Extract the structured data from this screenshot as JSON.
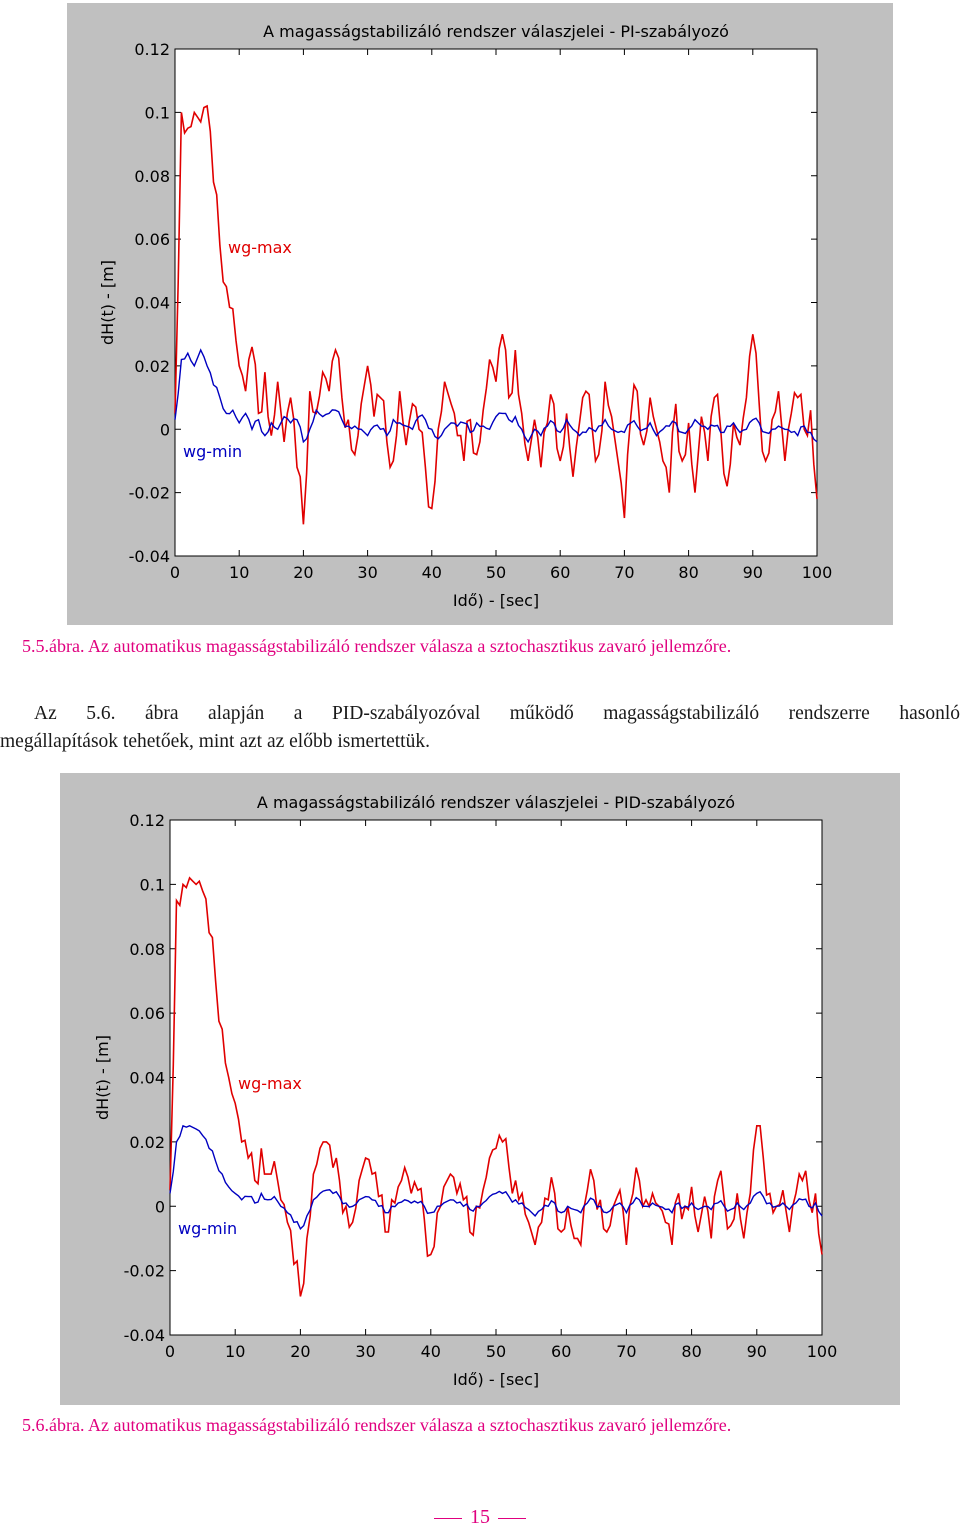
{
  "figures": [
    {
      "title": "A magasságstabilizáló rendszer válaszjelei - PI-szabályozó",
      "caption": "5.5.ábra. Az automatikus magasságstabilizáló rendszer válasza a sztochasztikus zavaró jellemzőre.",
      "chart_data": {
        "type": "line",
        "title": "A magasságstabilizáló rendszer válaszjelei - PI-szabályozó",
        "xlabel": "Idő) - [sec]",
        "ylabel": "dH(t) - [m]",
        "xlim": [
          0,
          100
        ],
        "ylim": [
          -0.04,
          0.12
        ],
        "xticks": [
          "0",
          "10",
          "20",
          "30",
          "40",
          "50",
          "60",
          "70",
          "80",
          "90",
          "100"
        ],
        "yticks": [
          "-0.04",
          "-0.02",
          "0",
          "0.02",
          "0.04",
          "0.06",
          "0.08",
          "0.1",
          "0.12"
        ],
        "grid": false,
        "series": [
          {
            "name": "wg-max",
            "color": "#e00000",
            "x": [
              0,
              1,
              2,
              3,
              4,
              5,
              6,
              7,
              8,
              9,
              10,
              11,
              12,
              13,
              14,
              15,
              16,
              17,
              18,
              19,
              20,
              21,
              22,
              23,
              24,
              25,
              26,
              27,
              28,
              29,
              30,
              31,
              32,
              33,
              34,
              35,
              36,
              37,
              38,
              39,
              40,
              41,
              42,
              43,
              44,
              45,
              46,
              47,
              48,
              49,
              50,
              51,
              52,
              53,
              54,
              55,
              56,
              57,
              58,
              59,
              60,
              61,
              62,
              63,
              64,
              65,
              66,
              67,
              68,
              69,
              70,
              71,
              72,
              73,
              74,
              75,
              76,
              77,
              78,
              79,
              80,
              81,
              82,
              83,
              84,
              85,
              86,
              87,
              88,
              89,
              90,
              91,
              92,
              93,
              94,
              95,
              96,
              97,
              98,
              99,
              100
            ],
            "y": [
              0.005,
              0.1,
              0.095,
              0.1,
              0.097,
              0.102,
              0.078,
              0.058,
              0.045,
              0.038,
              0.02,
              0.012,
              0.026,
              0.005,
              0.018,
              -0.002,
              0.015,
              -0.004,
              0.01,
              -0.012,
              -0.03,
              0.012,
              0.005,
              0.018,
              0.012,
              0.025,
              0.01,
              0.003,
              -0.008,
              0.008,
              0.02,
              0.004,
              0.01,
              -0.004,
              -0.01,
              0.012,
              -0.005,
              0.008,
              0.0,
              -0.012,
              -0.025,
              0.0,
              0.015,
              0.008,
              -0.002,
              -0.01,
              0.003,
              -0.008,
              0.006,
              0.022,
              0.015,
              0.03,
              0.01,
              0.025,
              0.005,
              -0.01,
              0.003,
              -0.012,
              0.002,
              0.008,
              -0.01,
              0.005,
              -0.015,
              0.002,
              0.012,
              0.0,
              -0.008,
              0.015,
              0.004,
              -0.01,
              -0.028,
              0.004,
              0.012,
              -0.005,
              0.01,
              0.0,
              -0.01,
              -0.02,
              0.008,
              -0.01,
              0.002,
              -0.02,
              0.004,
              -0.01,
              0.01,
              0.0,
              -0.018,
              0.002,
              -0.005,
              0.01,
              0.03,
              0.008,
              -0.01,
              0.003,
              0.012,
              -0.01,
              0.005,
              0.01,
              0.0,
              0.006,
              -0.022
            ]
          },
          {
            "name": "wg-min",
            "color": "#0000c0",
            "x": [
              0,
              1,
              2,
              3,
              4,
              5,
              6,
              7,
              8,
              9,
              10,
              11,
              12,
              13,
              14,
              15,
              16,
              17,
              18,
              19,
              20,
              21,
              22,
              23,
              24,
              25,
              26,
              27,
              28,
              29,
              30,
              31,
              32,
              33,
              34,
              35,
              36,
              37,
              38,
              39,
              40,
              41,
              42,
              43,
              44,
              45,
              46,
              47,
              48,
              49,
              50,
              51,
              52,
              53,
              54,
              55,
              56,
              57,
              58,
              59,
              60,
              61,
              62,
              63,
              64,
              65,
              66,
              67,
              68,
              69,
              70,
              71,
              72,
              73,
              74,
              75,
              76,
              77,
              78,
              79,
              80,
              81,
              82,
              83,
              84,
              85,
              86,
              87,
              88,
              89,
              90,
              91,
              92,
              93,
              94,
              95,
              96,
              97,
              98,
              99,
              100
            ],
            "y": [
              0.003,
              0.022,
              0.024,
              0.02,
              0.025,
              0.02,
              0.014,
              0.01,
              0.005,
              0.006,
              0.002,
              0.005,
              0.0,
              0.003,
              -0.002,
              0.002,
              0.0,
              0.004,
              0.002,
              0.003,
              -0.004,
              0.0,
              0.006,
              0.004,
              0.005,
              0.006,
              0.003,
              0.001,
              0.001,
              0.0,
              -0.002,
              0.001,
              0.0,
              -0.002,
              0.003,
              0.002,
              0.001,
              0.0,
              0.004,
              0.003,
              0.0,
              -0.003,
              0.0,
              0.002,
              0.001,
              0.002,
              -0.001,
              0.002,
              0.001,
              0.0,
              0.004,
              0.005,
              0.003,
              0.004,
              0.0,
              -0.004,
              0.0,
              -0.002,
              0.001,
              0.002,
              -0.001,
              0.003,
              0.0,
              -0.002,
              -0.001,
              0.0,
              0.001,
              0.003,
              0.0,
              -0.001,
              -0.001,
              0.002,
              0.001,
              0.0,
              0.002,
              -0.002,
              0.0,
              0.001,
              0.002,
              -0.001,
              0.0,
              0.003,
              0.001,
              0.0,
              0.001,
              -0.001,
              0.001,
              0.002,
              -0.001,
              0.0,
              0.003,
              0.002,
              -0.001,
              0.0,
              0.001,
              0.0,
              -0.001,
              -0.002,
              0.001,
              -0.001,
              -0.004
            ]
          }
        ],
        "annotations": [
          "wg-max",
          "wg-min"
        ]
      }
    },
    {
      "title": "A magasságstabilizáló rendszer válaszjelei - PID-szabályozó",
      "caption": "5.6.ábra. Az automatikus magasságstabilizáló rendszer válasza a sztochasztikus zavaró jellemzőre.",
      "chart_data": {
        "type": "line",
        "title": "A magasságstabilizáló rendszer válaszjelei - PID-szabályozó",
        "xlabel": "Idő) - [sec]",
        "ylabel": "dH(t) - [m]",
        "xlim": [
          0,
          100
        ],
        "ylim": [
          -0.04,
          0.12
        ],
        "xticks": [
          "0",
          "10",
          "20",
          "30",
          "40",
          "50",
          "60",
          "70",
          "80",
          "90",
          "100"
        ],
        "yticks": [
          "-0.04",
          "-0.02",
          "0",
          "0.02",
          "0.04",
          "0.06",
          "0.08",
          "0.1",
          "0.12"
        ],
        "grid": false,
        "series": [
          {
            "name": "wg-max",
            "color": "#e00000",
            "x": [
              0,
              1,
              2,
              3,
              4,
              5,
              6,
              7,
              8,
              9,
              10,
              11,
              12,
              13,
              14,
              15,
              16,
              17,
              18,
              19,
              20,
              21,
              22,
              23,
              24,
              25,
              26,
              27,
              28,
              29,
              30,
              31,
              32,
              33,
              34,
              35,
              36,
              37,
              38,
              39,
              40,
              41,
              42,
              43,
              44,
              45,
              46,
              47,
              48,
              49,
              50,
              51,
              52,
              53,
              54,
              55,
              56,
              57,
              58,
              59,
              60,
              61,
              62,
              63,
              64,
              65,
              66,
              67,
              68,
              69,
              70,
              71,
              72,
              73,
              74,
              75,
              76,
              77,
              78,
              79,
              80,
              81,
              82,
              83,
              84,
              85,
              86,
              87,
              88,
              89,
              90,
              91,
              92,
              93,
              94,
              95,
              96,
              97,
              98,
              99,
              100
            ],
            "y": [
              0.005,
              0.095,
              0.1,
              0.102,
              0.1,
              0.098,
              0.085,
              0.07,
              0.055,
              0.04,
              0.032,
              0.02,
              0.015,
              0.008,
              0.018,
              0.01,
              0.014,
              0.002,
              -0.005,
              -0.018,
              -0.028,
              -0.01,
              0.01,
              0.018,
              0.02,
              0.012,
              0.008,
              0.0,
              -0.005,
              0.008,
              0.015,
              0.01,
              0.003,
              -0.008,
              0.002,
              0.006,
              0.012,
              0.004,
              0.005,
              -0.004,
              -0.015,
              -0.002,
              0.006,
              0.01,
              0.004,
              0.002,
              -0.008,
              0.0,
              0.005,
              0.015,
              0.018,
              0.02,
              0.012,
              0.008,
              0.004,
              -0.005,
              -0.012,
              -0.005,
              0.002,
              0.004,
              -0.008,
              0.0,
              -0.01,
              -0.012,
              0.005,
              0.008,
              0.002,
              -0.008,
              0.0,
              0.005,
              -0.012,
              0.004,
              0.008,
              0.002,
              0.004,
              0.0,
              -0.005,
              -0.012,
              0.004,
              0.0,
              0.006,
              -0.008,
              0.003,
              -0.01,
              0.008,
              0.002,
              -0.006,
              0.004,
              -0.01,
              0.004,
              0.025,
              0.015,
              0.004,
              0.0,
              0.005,
              -0.008,
              0.004,
              0.008,
              0.002,
              0.004,
              -0.015
            ]
          },
          {
            "name": "wg-min",
            "color": "#0000c0",
            "x": [
              0,
              1,
              2,
              3,
              4,
              5,
              6,
              7,
              8,
              9,
              10,
              11,
              12,
              13,
              14,
              15,
              16,
              17,
              18,
              19,
              20,
              21,
              22,
              23,
              24,
              25,
              26,
              27,
              28,
              29,
              30,
              31,
              32,
              33,
              34,
              35,
              36,
              37,
              38,
              39,
              40,
              41,
              42,
              43,
              44,
              45,
              46,
              47,
              48,
              49,
              50,
              51,
              52,
              53,
              54,
              55,
              56,
              57,
              58,
              59,
              60,
              61,
              62,
              63,
              64,
              65,
              66,
              67,
              68,
              69,
              70,
              71,
              72,
              73,
              74,
              75,
              76,
              77,
              78,
              79,
              80,
              81,
              82,
              83,
              84,
              85,
              86,
              87,
              88,
              89,
              90,
              91,
              92,
              93,
              94,
              95,
              96,
              97,
              98,
              99,
              100
            ],
            "y": [
              0.004,
              0.02,
              0.025,
              0.025,
              0.024,
              0.022,
              0.018,
              0.014,
              0.01,
              0.006,
              0.004,
              0.002,
              0.003,
              0.001,
              0.004,
              0.002,
              0.003,
              0.0,
              -0.002,
              -0.005,
              -0.007,
              -0.003,
              0.002,
              0.004,
              0.005,
              0.004,
              0.003,
              0.001,
              0.0,
              0.002,
              0.003,
              0.002,
              0.0,
              -0.002,
              0.0,
              0.001,
              0.002,
              0.001,
              0.001,
              0.0,
              -0.002,
              0.0,
              0.001,
              0.002,
              0.001,
              0.0,
              -0.001,
              0.0,
              0.001,
              0.003,
              0.004,
              0.004,
              0.003,
              0.002,
              0.001,
              -0.001,
              -0.003,
              -0.001,
              0.0,
              0.001,
              -0.002,
              0.0,
              -0.001,
              -0.002,
              0.001,
              0.002,
              0.0,
              -0.002,
              0.0,
              0.001,
              -0.002,
              0.001,
              0.002,
              0.0,
              0.001,
              0.0,
              -0.001,
              -0.002,
              0.001,
              0.0,
              0.001,
              -0.001,
              0.0,
              -0.001,
              0.001,
              0.0,
              -0.001,
              0.001,
              -0.001,
              0.001,
              0.004,
              0.003,
              0.001,
              0.0,
              0.001,
              -0.001,
              0.001,
              0.002,
              0.0,
              0.001,
              -0.003
            ]
          }
        ],
        "annotations": [
          "wg-max",
          "wg-min"
        ]
      }
    }
  ],
  "paragraph": {
    "line1": "Az 5.6. ábra alapján a PID-szabályozóval működő magasságstabilizáló rendszerre hasonló",
    "line2": "megállapítások tehetőek, mint azt az előbb ismertettük."
  },
  "page_number": "15"
}
